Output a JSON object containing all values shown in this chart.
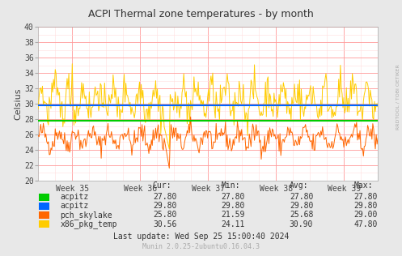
{
  "title": "ACPI Thermal zone temperatures - by month",
  "ylabel": "Celsius",
  "ylim": [
    20,
    40
  ],
  "yticks": [
    20,
    22,
    24,
    26,
    28,
    30,
    32,
    34,
    36,
    38,
    40
  ],
  "week_labels": [
    "Week 35",
    "Week 36",
    "Week 37",
    "Week 38",
    "Week 39"
  ],
  "background_color": "#e8e8e8",
  "plot_bg_color": "#ffffff",
  "grid_color_major": "#ff9999",
  "grid_color_minor": "#ffdddd",
  "acpitz_green_val": 27.8,
  "acpitz_blue_val": 29.8,
  "series_colors": {
    "acpitz_green": "#00cc00",
    "acpitz_blue": "#0066ff",
    "pch_skylake": "#ff6600",
    "x86_pkg_temp": "#ffcc00"
  },
  "legend_entries": [
    {
      "label": "acpitz",
      "color": "#00cc00",
      "cur": "27.80",
      "min": "27.80",
      "avg": "27.80",
      "max": "27.80"
    },
    {
      "label": "acpitz",
      "color": "#0066ff",
      "cur": "29.80",
      "min": "29.80",
      "avg": "29.80",
      "max": "29.80"
    },
    {
      "label": "pch_skylake",
      "color": "#ff6600",
      "cur": "25.80",
      "min": "21.59",
      "avg": "25.68",
      "max": "29.00"
    },
    {
      "label": "x86_pkg_temp",
      "color": "#ffcc00",
      "cur": "30.56",
      "min": "24.11",
      "avg": "30.90",
      "max": "47.80"
    }
  ],
  "last_update": "Last update: Wed Sep 25 15:00:40 2024",
  "munin_version": "Munin 2.0.25-2ubuntu0.16.04.3",
  "right_label": "RRDTOOL / TOBI OETIKER",
  "num_points": 400,
  "figsize": [
    4.97,
    3.16
  ],
  "dpi": 100
}
